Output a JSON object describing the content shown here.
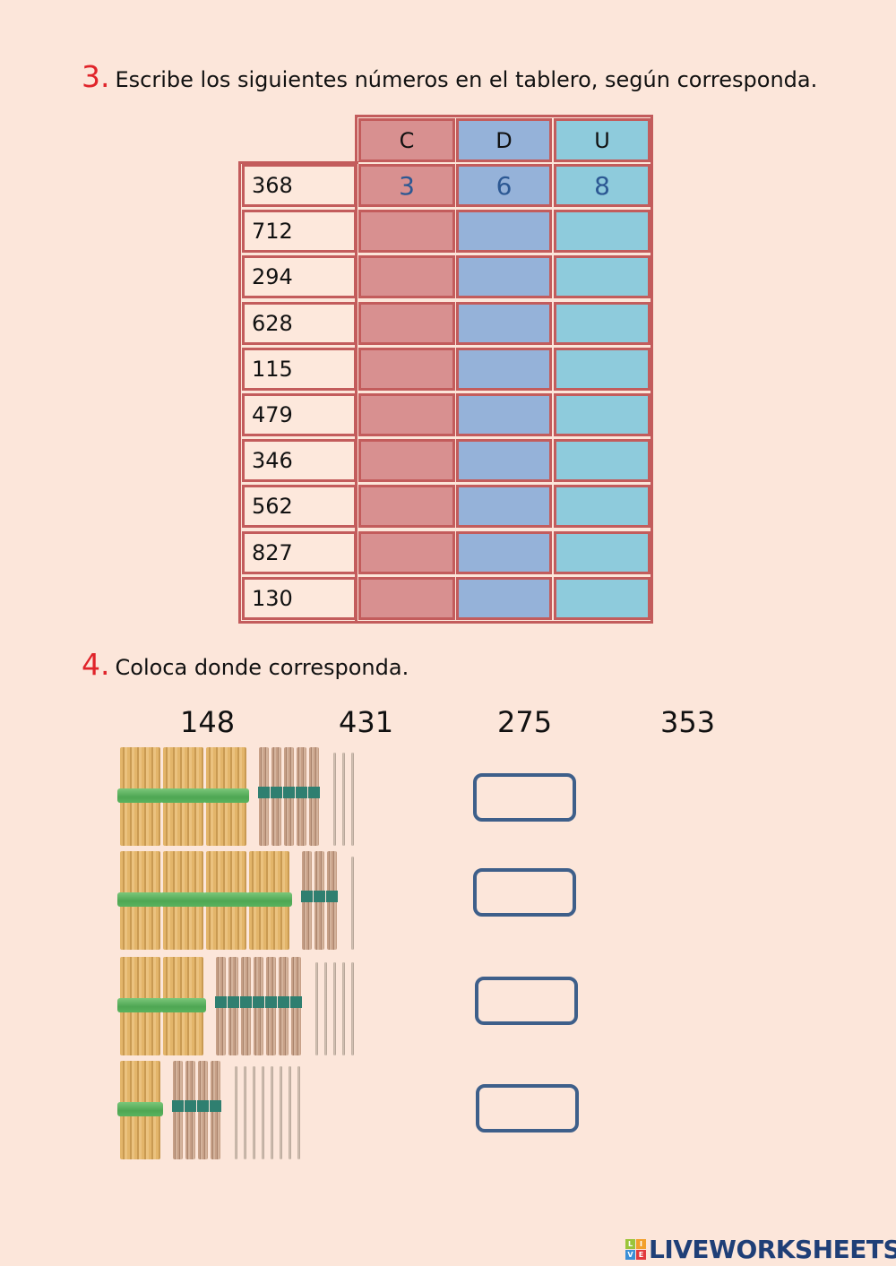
{
  "section3": {
    "number": "3.",
    "instruction": "Escribe los siguientes números en el tablero, según corresponda.",
    "table": {
      "headers": [
        "C",
        "D",
        "U"
      ],
      "rows": [
        {
          "label": "368",
          "c": "3",
          "d": "6",
          "u": "8"
        },
        {
          "label": "712",
          "c": "",
          "d": "",
          "u": ""
        },
        {
          "label": "294",
          "c": "",
          "d": "",
          "u": ""
        },
        {
          "label": "628",
          "c": "",
          "d": "",
          "u": ""
        },
        {
          "label": "115",
          "c": "",
          "d": "",
          "u": ""
        },
        {
          "label": "479",
          "c": "",
          "d": "",
          "u": ""
        },
        {
          "label": "346",
          "c": "",
          "d": "",
          "u": ""
        },
        {
          "label": "562",
          "c": "",
          "d": "",
          "u": ""
        },
        {
          "label": "827",
          "c": "",
          "d": "",
          "u": ""
        },
        {
          "label": "130",
          "c": "",
          "d": "",
          "u": ""
        }
      ]
    },
    "colors": {
      "c": "#d89090",
      "d": "#95b2d9",
      "u": "#8ecbdc",
      "border": "#c35c5c",
      "answer": "#2c5893"
    }
  },
  "section4": {
    "number": "4.",
    "instruction": "Coloca donde corresponda.",
    "options": [
      "148",
      "431",
      "275",
      "353"
    ],
    "items": [
      {
        "hundreds": 3,
        "tens": 5,
        "units": 3,
        "answer": ""
      },
      {
        "hundreds": 4,
        "tens": 3,
        "units": 1,
        "answer": ""
      },
      {
        "hundreds": 2,
        "tens": 7,
        "units": 5,
        "answer": ""
      },
      {
        "hundreds": 1,
        "tens": 4,
        "units": 8,
        "answer": ""
      }
    ]
  },
  "footer": {
    "logo_text": "LIVEWORKSHEETS",
    "logo_letters": [
      "L",
      "I",
      "V",
      "E"
    ]
  }
}
